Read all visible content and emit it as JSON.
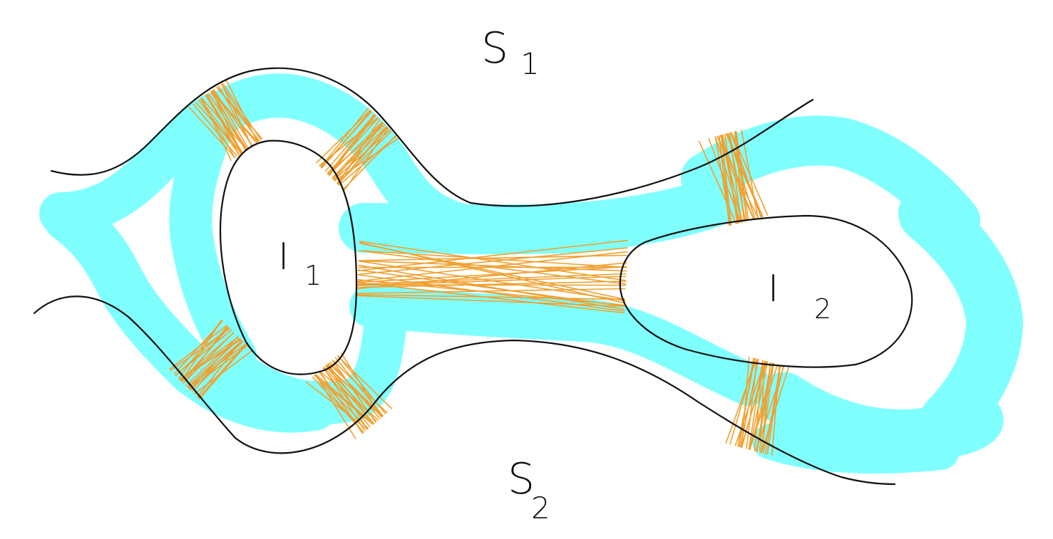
{
  "regions": {
    "s1": {
      "letter": "S",
      "sub": "1"
    },
    "s2": {
      "letter": "S",
      "sub": "2"
    },
    "i1": {
      "letter": "I",
      "sub": "1"
    },
    "i2": {
      "letter": "I",
      "sub": "2"
    }
  },
  "colors": {
    "water": "#80FFFF",
    "bridge": "#F0A030",
    "ink": "#111111",
    "background": "#FFFFFF"
  },
  "bridge_count": 7
}
